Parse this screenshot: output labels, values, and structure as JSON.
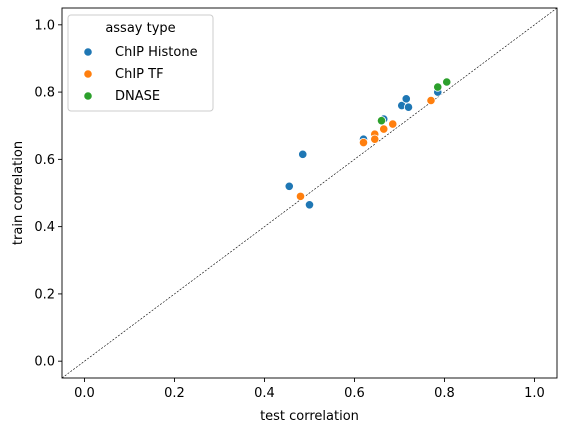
{
  "chart_data": {
    "type": "scatter",
    "xlabel": "test correlation",
    "ylabel": "train correlation",
    "xlim": [
      -0.05,
      1.05
    ],
    "ylim": [
      -0.05,
      1.05
    ],
    "xticks": [
      0.0,
      0.2,
      0.4,
      0.6,
      0.8,
      1.0
    ],
    "yticks": [
      0.0,
      0.2,
      0.4,
      0.6,
      0.8,
      1.0
    ],
    "xtick_labels": [
      "0.0",
      "0.2",
      "0.4",
      "0.6",
      "0.8",
      "1.0"
    ],
    "ytick_labels": [
      "0.0",
      "0.2",
      "0.4",
      "0.6",
      "0.8",
      "1.0"
    ],
    "grid": false,
    "reference_line": {
      "type": "diagonal",
      "style": "dashed",
      "color": "#000000"
    },
    "legend": {
      "title": "assay type",
      "placement": "top-left"
    },
    "series": [
      {
        "name": "ChIP Histone",
        "color": "#1f77b4",
        "points": [
          [
            0.455,
            0.52
          ],
          [
            0.485,
            0.615
          ],
          [
            0.5,
            0.465
          ],
          [
            0.62,
            0.66
          ],
          [
            0.665,
            0.72
          ],
          [
            0.705,
            0.76
          ],
          [
            0.715,
            0.78
          ],
          [
            0.72,
            0.755
          ],
          [
            0.785,
            0.8
          ]
        ]
      },
      {
        "name": "ChIP TF",
        "color": "#ff7f0e",
        "points": [
          [
            0.48,
            0.49
          ],
          [
            0.62,
            0.65
          ],
          [
            0.645,
            0.675
          ],
          [
            0.645,
            0.66
          ],
          [
            0.665,
            0.69
          ],
          [
            0.685,
            0.705
          ],
          [
            0.77,
            0.775
          ]
        ]
      },
      {
        "name": "DNASE",
        "color": "#2ca02c",
        "points": [
          [
            0.66,
            0.715
          ],
          [
            0.785,
            0.815
          ],
          [
            0.805,
            0.83
          ]
        ]
      }
    ]
  }
}
